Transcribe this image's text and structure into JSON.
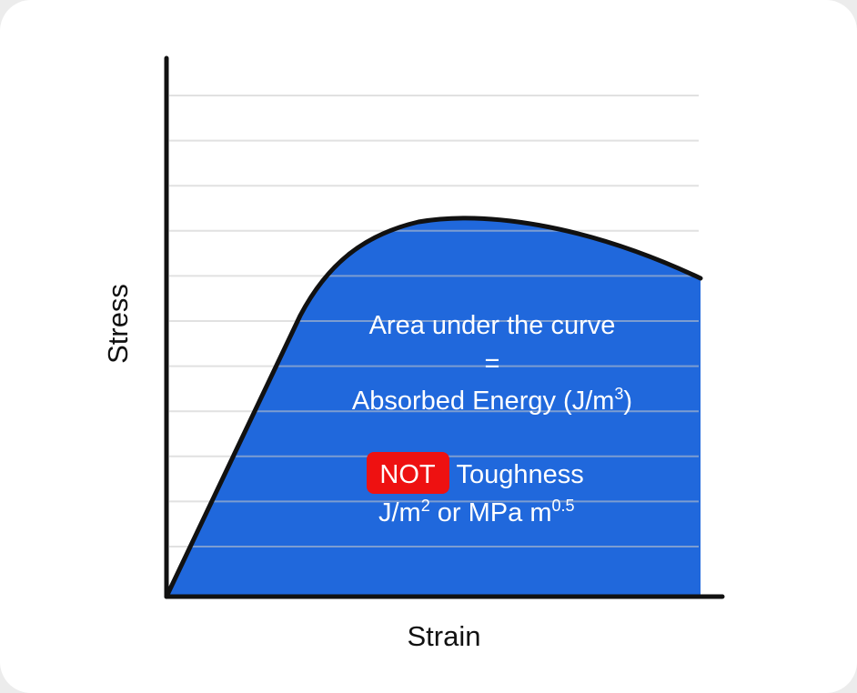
{
  "chart_data": {
    "type": "area",
    "title": "",
    "xlabel": "Strain",
    "ylabel": "Stress",
    "grid": "horizontal",
    "legend": "none",
    "fill_color": "#2068dc",
    "curve_color": "#111111",
    "gridline_color": "#c8c8c8",
    "annotation": {
      "line1": "Area under the curve",
      "line2": "=",
      "line3_main": "Absorbed Energy (J/m",
      "line3_sup": "3",
      "line3_end": ")",
      "badge": "NOT",
      "badge_color": "#ee1111",
      "line4_rest": " Toughness",
      "line5_a": "J/m",
      "line5_sup_a": "2",
      "line5_b": " or MPa m",
      "line5_sup_b": "0.5"
    }
  }
}
